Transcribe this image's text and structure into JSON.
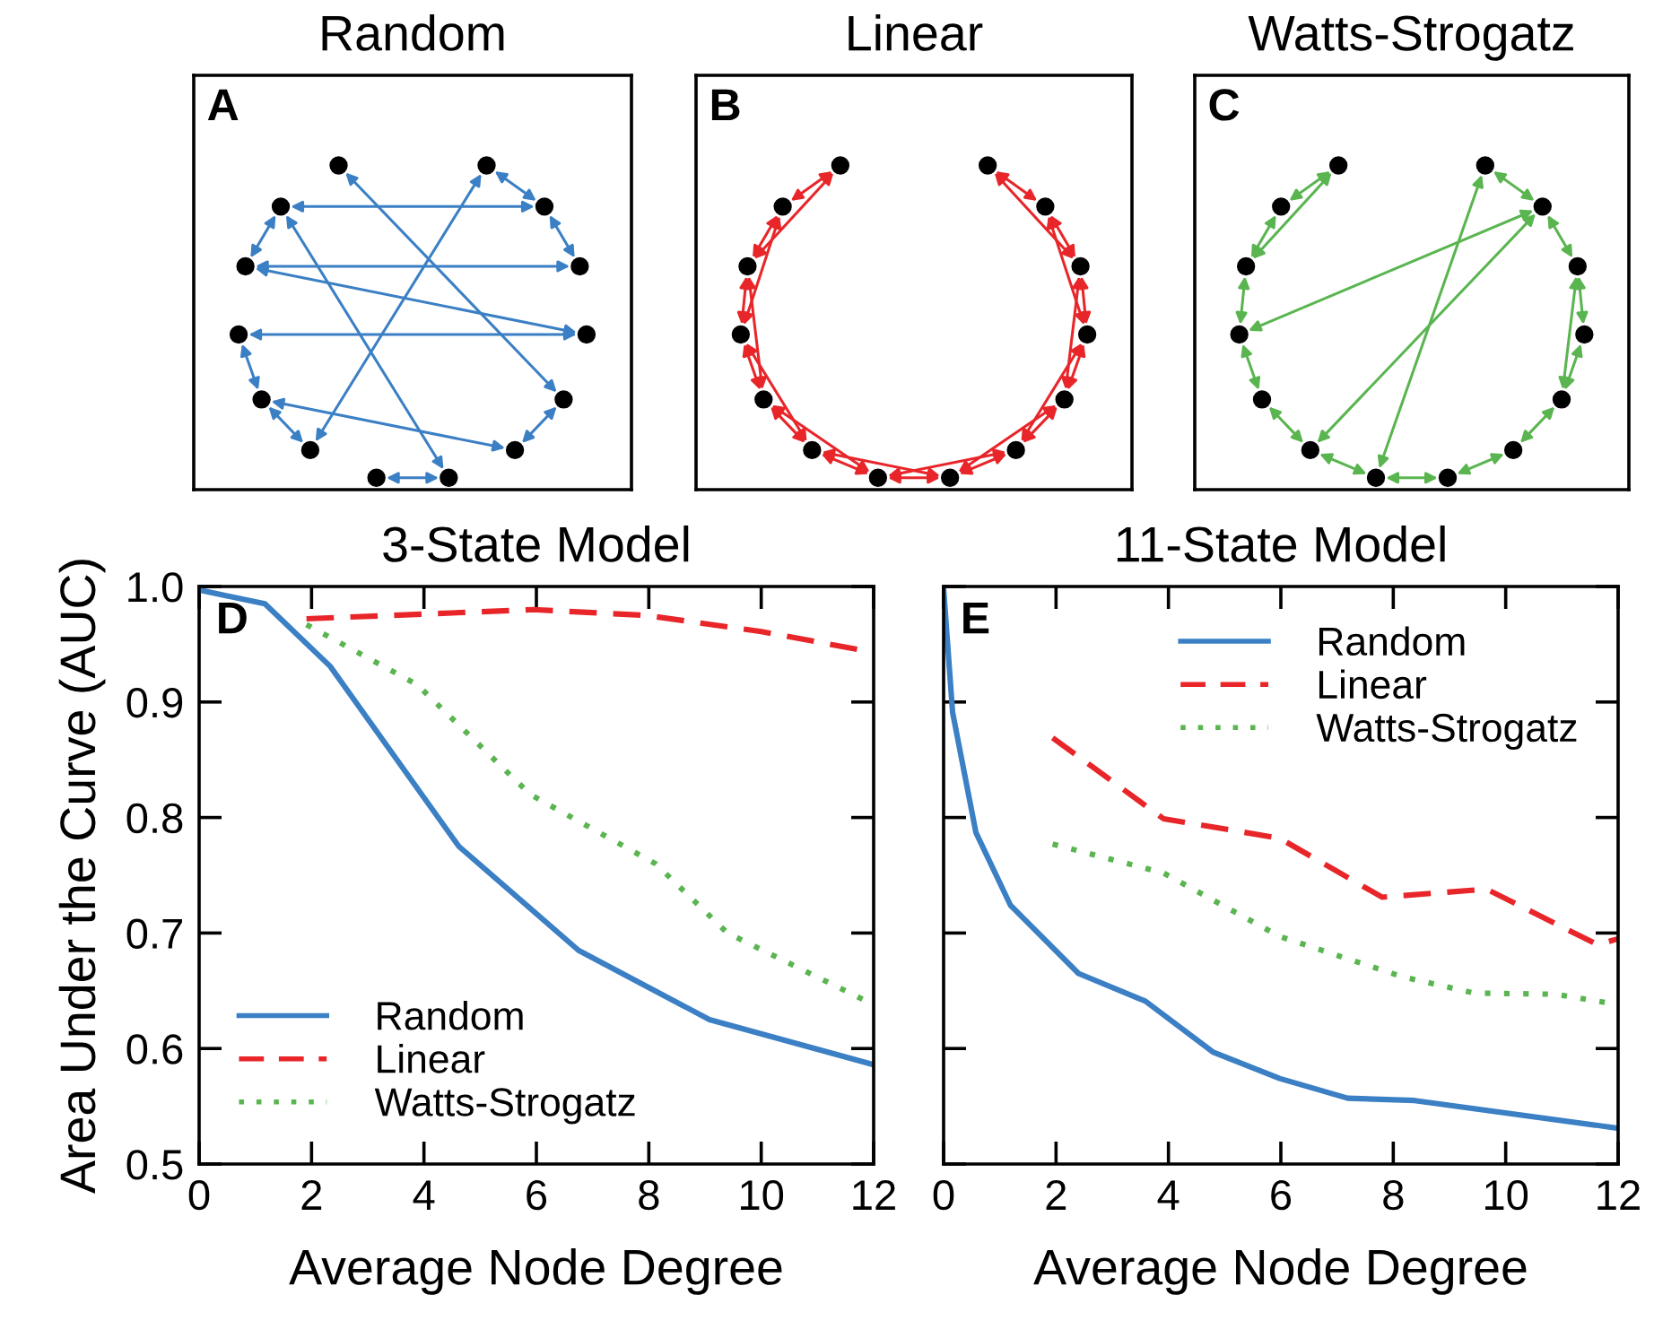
{
  "chart_data": [
    {
      "type": "other",
      "title": "Random",
      "annotations": [
        "A"
      ]
    },
    {
      "type": "other",
      "title": "Linear",
      "annotations": [
        "B"
      ]
    },
    {
      "type": "other",
      "title": "Watts-Strogatz",
      "annotations": [
        "C"
      ]
    },
    {
      "type": "line",
      "title": "3-State Model",
      "xlabel": "Average Node Degree",
      "ylabel": "Area Under the Curve (AUC)",
      "annotations": [
        "D"
      ],
      "xlim": [
        0,
        12
      ],
      "ylim": [
        0.5,
        1.0
      ],
      "xticks": [
        0,
        2,
        4,
        6,
        8,
        10,
        12
      ],
      "yticks": [
        {
          "value": 0.5,
          "label": "0.5"
        },
        {
          "value": 0.6,
          "label": "0.6"
        },
        {
          "value": 0.7,
          "label": "0.7"
        },
        {
          "value": 0.8,
          "label": "0.8"
        },
        {
          "value": 0.9,
          "label": "0.9"
        },
        {
          "value": 1,
          "label": "1.0"
        }
      ],
      "grid": false,
      "legend": "bottom left",
      "series": [
        {
          "name": "Random",
          "color": "#3b7fc4",
          "line_style": "solid",
          "x": [
            0,
            1.17,
            2.33,
            4.62,
            6.75,
            9.08,
            12
          ],
          "values": [
            0.997,
            0.985,
            0.931,
            0.775,
            0.685,
            0.625,
            0.586
          ]
        },
        {
          "name": "Linear",
          "color": "#e8262a",
          "line_style": "dashed",
          "x": [
            1.91,
            5.94,
            7.95,
            10.0,
            12
          ],
          "values": [
            0.972,
            0.98,
            0.975,
            0.961,
            0.943
          ]
        },
        {
          "name": "Watts-Strogatz",
          "color": "#5ab550",
          "line_style": "dotted",
          "x": [
            1.91,
            3.88,
            5.89,
            8.12,
            9.4,
            12
          ],
          "values": [
            0.967,
            0.915,
            0.82,
            0.76,
            0.7,
            0.638
          ]
        }
      ]
    },
    {
      "type": "line",
      "title": "11-State Model",
      "xlabel": "Average Node Degree",
      "annotations": [
        "E"
      ],
      "xlim": [
        0,
        12
      ],
      "ylim": [
        0.5,
        1.0
      ],
      "xticks": [
        0,
        2,
        4,
        6,
        8,
        10,
        12
      ],
      "yticks": [
        0.5,
        0.6,
        0.7,
        0.8,
        0.9,
        1.0
      ],
      "tick_labels": "x",
      "grid": false,
      "legend": "top right",
      "series": [
        {
          "name": "Random",
          "color": "#3b7fc4",
          "line_style": "solid",
          "x": [
            0,
            0.16,
            0.575,
            1.19,
            2.4,
            3.59,
            4.79,
            5.98,
            7.19,
            8.38,
            12
          ],
          "values": [
            0.998,
            0.891,
            0.787,
            0.724,
            0.665,
            0.641,
            0.597,
            0.574,
            0.557,
            0.555,
            0.531
          ]
        },
        {
          "name": "Linear",
          "color": "#e8262a",
          "line_style": "dashed",
          "x": [
            1.94,
            3.91,
            5.98,
            7.8,
            9.66,
            11.63,
            12
          ],
          "values": [
            0.869,
            0.799,
            0.782,
            0.731,
            0.738,
            0.69,
            0.695
          ]
        },
        {
          "name": "Watts-Strogatz",
          "color": "#5ab550",
          "line_style": "dotted",
          "x": [
            1.94,
            3.91,
            5.98,
            8.17,
            9.44,
            10.9,
            12
          ],
          "values": [
            0.777,
            0.752,
            0.697,
            0.662,
            0.648,
            0.647,
            0.638
          ]
        }
      ]
    }
  ]
}
